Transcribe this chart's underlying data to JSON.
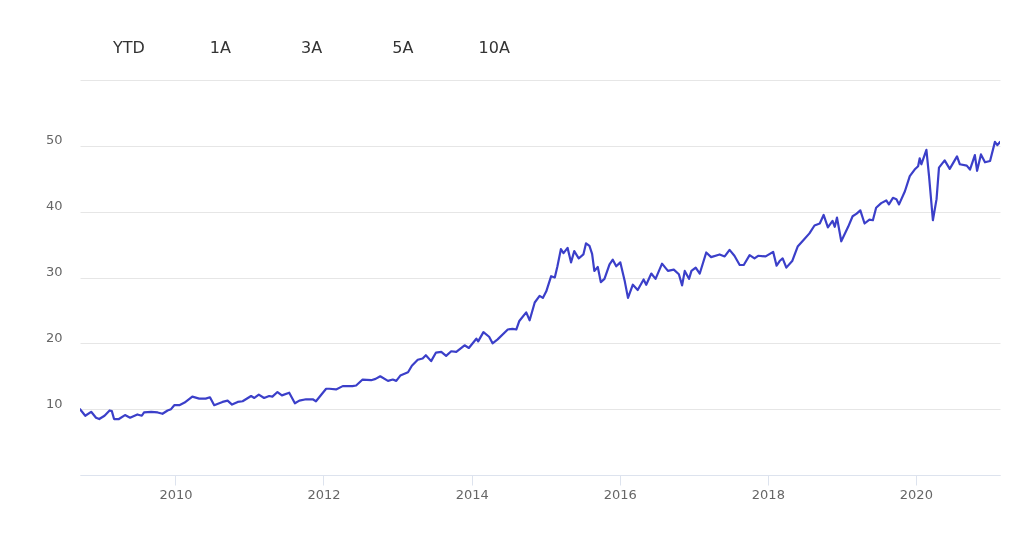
{
  "chart_data": {
    "type": "line",
    "annotations": [
      "YTD",
      "1A",
      "3A",
      "5A",
      "10A"
    ],
    "x": [
      "2008-09-17",
      "2008-10-13",
      "2008-11-11",
      "2008-12-05",
      "2008-12-21",
      "2009-01-16",
      "2009-02-10",
      "2009-02-21",
      "2009-03-04",
      "2009-03-28",
      "2009-04-27",
      "2009-05-22",
      "2009-06-27",
      "2009-07-19",
      "2009-07-30",
      "2009-09-03",
      "2009-10-05",
      "2009-10-29",
      "2009-11-23",
      "2009-12-10",
      "2009-12-26",
      "2010-01-20",
      "2010-02-15",
      "2010-03-25",
      "2010-04-28",
      "2010-05-30",
      "2010-06-20",
      "2010-07-11",
      "2010-08-05",
      "2010-08-21",
      "2010-09-15",
      "2010-10-07",
      "2010-11-04",
      "2010-11-28",
      "2011-01-09",
      "2011-01-25",
      "2011-02-16",
      "2011-03-14",
      "2011-04-08",
      "2011-04-24",
      "2011-05-19",
      "2011-06-10",
      "2011-07-16",
      "2011-08-13",
      "2011-09-04",
      "2011-10-07",
      "2011-11-09",
      "2011-11-25",
      "2012-01-14",
      "2012-01-30",
      "2012-03-03",
      "2012-04-05",
      "2012-05-23",
      "2012-06-10",
      "2012-07-12",
      "2012-08-23",
      "2012-09-14",
      "2012-10-07",
      "2012-11-14",
      "2012-12-08",
      "2012-12-25",
      "2013-01-14",
      "2013-02-21",
      "2013-03-12",
      "2013-04-10",
      "2013-05-04",
      "2013-05-20",
      "2013-06-15",
      "2013-07-09",
      "2013-08-04",
      "2013-08-28",
      "2013-09-22",
      "2013-10-17",
      "2013-11-27",
      "2013-12-18",
      "2014-01-24",
      "2014-02-02",
      "2014-02-28",
      "2014-03-28",
      "2014-04-14",
      "2014-05-09",
      "2014-06-28",
      "2014-07-22",
      "2014-08-09",
      "2014-08-24",
      "2014-09-27",
      "2014-10-14",
      "2014-11-08",
      "2014-12-02",
      "2014-12-18",
      "2015-01-04",
      "2015-01-28",
      "2015-02-15",
      "2015-02-28",
      "2015-03-17",
      "2015-03-30",
      "2015-04-19",
      "2015-05-06",
      "2015-05-22",
      "2015-06-13",
      "2015-07-06",
      "2015-07-19",
      "2015-08-05",
      "2015-08-18",
      "2015-08-29",
      "2015-09-15",
      "2015-09-30",
      "2015-10-18",
      "2015-11-12",
      "2015-11-28",
      "2015-12-15",
      "2016-01-04",
      "2016-01-25",
      "2016-02-11",
      "2016-03-06",
      "2016-03-30",
      "2016-04-28",
      "2016-05-11",
      "2016-06-05",
      "2016-06-26",
      "2016-07-28",
      "2016-08-26",
      "2016-09-24",
      "2016-10-19",
      "2016-11-04",
      "2016-11-17",
      "2016-12-08",
      "2016-12-20",
      "2017-01-10",
      "2017-01-30",
      "2017-03-03",
      "2017-03-27",
      "2017-05-08",
      "2017-06-02",
      "2017-06-26",
      "2017-07-20",
      "2017-08-15",
      "2017-09-04",
      "2017-10-03",
      "2017-10-27",
      "2017-11-14",
      "2017-12-21",
      "2018-01-27",
      "2018-02-13",
      "2018-02-28",
      "2018-03-15",
      "2018-04-02",
      "2018-05-01",
      "2018-05-28",
      "2018-06-26",
      "2018-07-25",
      "2018-08-19",
      "2018-09-14",
      "2018-10-03",
      "2018-10-24",
      "2018-11-16",
      "2018-11-27",
      "2018-12-08",
      "2018-12-29",
      "2019-02-01",
      "2019-02-23",
      "2019-03-15",
      "2019-04-02",
      "2019-04-23",
      "2019-05-17",
      "2019-06-03",
      "2019-06-19",
      "2019-07-14",
      "2019-08-08",
      "2019-08-21",
      "2019-09-10",
      "2019-09-27",
      "2019-10-10",
      "2019-11-08",
      "2019-12-02",
      "2019-12-26",
      "2020-01-12",
      "2020-01-20",
      "2020-01-28",
      "2020-02-22",
      "2020-03-06",
      "2020-03-25",
      "2020-04-12",
      "2020-04-24",
      "2020-05-22",
      "2020-06-16",
      "2020-07-22",
      "2020-08-05",
      "2020-09-08",
      "2020-09-24",
      "2020-10-18",
      "2020-10-29",
      "2020-11-17",
      "2020-12-07",
      "2021-01-01",
      "2021-01-25",
      "2021-02-06",
      "2021-02-19"
    ],
    "series": [
      {
        "color": "#3b3fc9",
        "values": [
          10.0,
          9.0,
          9.6,
          8.7,
          8.5,
          9.0,
          9.8,
          9.7,
          8.5,
          8.5,
          9.1,
          8.7,
          9.2,
          9.0,
          9.5,
          9.6,
          9.5,
          9.3,
          9.8,
          10.0,
          10.6,
          10.6,
          11.0,
          11.9,
          11.6,
          11.6,
          11.8,
          10.6,
          10.9,
          11.1,
          11.3,
          10.7,
          11.1,
          11.2,
          12.0,
          11.7,
          12.2,
          11.7,
          12.0,
          11.9,
          12.6,
          12.1,
          12.5,
          10.9,
          11.3,
          11.5,
          11.5,
          11.2,
          13.1,
          13.1,
          13.0,
          13.5,
          13.5,
          13.6,
          14.5,
          14.4,
          14.6,
          15.0,
          14.3,
          14.5,
          14.3,
          15.1,
          15.6,
          16.6,
          17.5,
          17.7,
          18.2,
          17.3,
          18.6,
          18.7,
          18.1,
          18.8,
          18.7,
          19.7,
          19.3,
          20.7,
          20.3,
          21.7,
          21.0,
          20.0,
          20.6,
          22.1,
          22.2,
          22.1,
          23.4,
          24.7,
          23.5,
          26.2,
          27.2,
          26.9,
          27.9,
          30.2,
          30.0,
          31.7,
          34.3,
          33.7,
          34.5,
          32.3,
          34.0,
          32.9,
          33.5,
          35.2,
          34.8,
          33.6,
          31.0,
          31.6,
          29.3,
          29.8,
          32.0,
          32.7,
          31.7,
          32.3,
          29.6,
          26.9,
          28.9,
          28.1,
          29.7,
          28.9,
          30.6,
          29.8,
          32.1,
          31.0,
          31.2,
          30.5,
          28.8,
          31.0,
          29.8,
          31.0,
          31.5,
          30.6,
          33.8,
          33.1,
          33.5,
          33.2,
          34.2,
          33.3,
          31.9,
          31.9,
          33.4,
          32.9,
          33.3,
          33.2,
          33.9,
          31.8,
          32.5,
          32.9,
          31.5,
          32.5,
          34.7,
          35.7,
          36.7,
          37.9,
          38.2,
          39.5,
          37.6,
          38.6,
          37.7,
          39.1,
          35.5,
          37.7,
          39.3,
          39.7,
          40.2,
          38.2,
          38.8,
          38.7,
          40.6,
          41.3,
          41.7,
          41.1,
          42.1,
          41.9,
          41.1,
          43.1,
          45.4,
          46.4,
          46.9,
          48.1,
          47.2,
          49.4,
          45.4,
          38.7,
          41.9,
          46.7,
          47.8,
          46.5,
          48.4,
          47.2,
          47.0,
          46.4,
          48.6,
          46.2,
          48.7,
          47.5,
          47.7,
          50.6,
          50.1,
          50.6
        ]
      }
    ],
    "xlim": [
      "2008-09-17",
      "2021-02-19"
    ],
    "xticks": [
      "2010",
      "2012",
      "2014",
      "2016",
      "2018",
      "2020"
    ],
    "ylim": [
      0,
      60
    ],
    "yticks": [
      {
        "value": 0,
        "label": null
      },
      10,
      20,
      30,
      40,
      50,
      {
        "value": 60,
        "label": null
      }
    ],
    "grid": "y"
  }
}
